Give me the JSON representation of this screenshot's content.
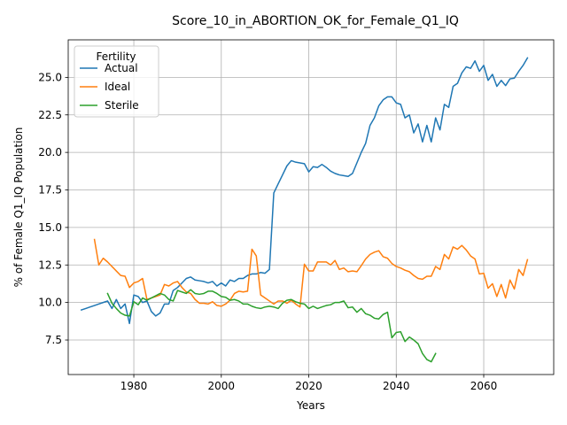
{
  "chart_data": {
    "type": "line",
    "title": "Score_10_in_ABORTION_OK_for_Female_Q1_IQ",
    "xlabel": "Years",
    "ylabel": "% of Female Q1_IQ Population",
    "xlim": [
      1965,
      2076
    ],
    "ylim": [
      5.2,
      27.5
    ],
    "xticks": [
      1980,
      2000,
      2020,
      2040,
      2060
    ],
    "yticks": [
      7.5,
      10.0,
      12.5,
      15.0,
      17.5,
      20.0,
      22.5,
      25.0
    ],
    "grid": true,
    "legend": {
      "title": "Fertility",
      "position": "top-left"
    },
    "series": [
      {
        "name": "Actual",
        "color": "#1f77b4",
        "x": [
          1968,
          1969,
          1970,
          1971,
          1972,
          1973,
          1974,
          1975,
          1976,
          1977,
          1978,
          1979,
          1980,
          1981,
          1982,
          1983,
          1984,
          1985,
          1986,
          1987,
          1988,
          1989,
          1990,
          1991,
          1992,
          1993,
          1994,
          1995,
          1996,
          1997,
          1998,
          1999,
          2000,
          2001,
          2002,
          2003,
          2004,
          2005,
          2006,
          2007,
          2008,
          2009,
          2010,
          2011,
          2012,
          2013,
          2014,
          2015,
          2016,
          2017,
          2018,
          2019,
          2020,
          2021,
          2022,
          2023,
          2024,
          2025,
          2026,
          2027,
          2028,
          2029,
          2030,
          2031,
          2032,
          2033,
          2034,
          2035,
          2036,
          2037,
          2038,
          2039,
          2040,
          2041,
          2042,
          2043,
          2044,
          2045,
          2046,
          2047,
          2048,
          2049,
          2050,
          2051,
          2052,
          2053,
          2054,
          2055,
          2056,
          2057,
          2058,
          2059,
          2060,
          2061,
          2062,
          2063,
          2064,
          2065,
          2066,
          2067,
          2068,
          2069,
          2070
        ],
        "values": [
          9.5,
          9.6,
          9.7,
          9.8,
          9.9,
          10.0,
          10.1,
          9.6,
          10.2,
          9.6,
          9.9,
          8.6,
          10.5,
          10.4,
          10.0,
          10.1,
          9.4,
          9.1,
          9.3,
          9.9,
          9.9,
          10.8,
          11.0,
          11.3,
          11.6,
          11.7,
          11.5,
          11.45,
          11.4,
          11.3,
          11.4,
          11.1,
          11.3,
          11.1,
          11.5,
          11.4,
          11.6,
          11.6,
          11.8,
          11.9,
          11.9,
          12.0,
          11.95,
          12.2,
          17.3,
          17.9,
          18.5,
          19.1,
          19.45,
          19.35,
          19.3,
          19.25,
          18.7,
          19.05,
          19.0,
          19.2,
          19.0,
          18.75,
          18.6,
          18.5,
          18.45,
          18.4,
          18.6,
          19.3,
          20.0,
          20.6,
          21.8,
          22.3,
          23.1,
          23.5,
          23.7,
          23.7,
          23.3,
          23.2,
          22.3,
          22.5,
          21.3,
          21.9,
          20.7,
          21.8,
          20.7,
          22.3,
          21.5,
          23.2,
          23.0,
          24.4,
          24.6,
          25.3,
          25.7,
          25.6,
          26.1,
          25.4,
          25.8,
          24.8,
          25.2,
          24.4,
          24.8,
          24.45,
          24.9,
          24.95,
          25.4,
          25.8,
          26.3
        ]
      },
      {
        "name": "Ideal",
        "color": "#ff7f0e",
        "x": [
          1971,
          1972,
          1973,
          1974,
          1975,
          1976,
          1977,
          1978,
          1979,
          1980,
          1981,
          1982,
          1983,
          1984,
          1985,
          1986,
          1987,
          1988,
          1989,
          1990,
          1991,
          1992,
          1993,
          1994,
          1995,
          1996,
          1997,
          1998,
          1999,
          2000,
          2001,
          2002,
          2003,
          2004,
          2005,
          2006,
          2007,
          2008,
          2009,
          2010,
          2011,
          2012,
          2013,
          2014,
          2015,
          2016,
          2017,
          2018,
          2019,
          2020,
          2021,
          2022,
          2023,
          2024,
          2025,
          2026,
          2027,
          2028,
          2029,
          2030,
          2031,
          2032,
          2033,
          2034,
          2035,
          2036,
          2037,
          2038,
          2039,
          2040,
          2041,
          2042,
          2043,
          2044,
          2045,
          2046,
          2047,
          2048,
          2049,
          2050,
          2051,
          2052,
          2053,
          2054,
          2055,
          2056,
          2057,
          2058,
          2059,
          2060,
          2061,
          2062,
          2063,
          2064,
          2065,
          2066,
          2067,
          2068,
          2069,
          2070
        ],
        "values": [
          14.2,
          12.5,
          12.95,
          12.7,
          12.4,
          12.1,
          11.8,
          11.75,
          11.0,
          11.3,
          11.4,
          11.6,
          10.2,
          10.3,
          10.4,
          10.5,
          11.2,
          11.1,
          11.3,
          11.4,
          11.0,
          10.7,
          10.6,
          10.2,
          9.95,
          9.95,
          9.9,
          10.05,
          9.8,
          9.75,
          9.9,
          10.15,
          10.6,
          10.75,
          10.7,
          10.75,
          13.55,
          13.1,
          10.5,
          10.3,
          10.1,
          9.9,
          10.1,
          10.1,
          9.95,
          10.15,
          9.9,
          9.7,
          12.55,
          12.1,
          12.1,
          12.7,
          12.7,
          12.7,
          12.5,
          12.8,
          12.2,
          12.3,
          12.05,
          12.1,
          12.05,
          12.45,
          12.9,
          13.2,
          13.35,
          13.45,
          13.05,
          12.95,
          12.6,
          12.4,
          12.3,
          12.15,
          12.05,
          11.8,
          11.6,
          11.55,
          11.75,
          11.75,
          12.4,
          12.2,
          13.2,
          12.9,
          13.7,
          13.55,
          13.8,
          13.5,
          13.1,
          12.9,
          11.9,
          11.95,
          10.95,
          11.25,
          10.4,
          11.2,
          10.3,
          11.5,
          10.9,
          12.2,
          11.8,
          12.85
        ]
      },
      {
        "name": "Sterile",
        "color": "#2ca02c",
        "x": [
          1974,
          1975,
          1976,
          1977,
          1978,
          1979,
          1980,
          1981,
          1982,
          1983,
          1984,
          1985,
          1986,
          1987,
          1988,
          1989,
          1990,
          1991,
          1992,
          1993,
          1994,
          1995,
          1996,
          1997,
          1998,
          1999,
          2000,
          2001,
          2002,
          2003,
          2004,
          2005,
          2006,
          2007,
          2008,
          2009,
          2010,
          2011,
          2012,
          2013,
          2014,
          2015,
          2016,
          2017,
          2018,
          2019,
          2020,
          2021,
          2022,
          2023,
          2024,
          2025,
          2026,
          2027,
          2028,
          2029,
          2030,
          2031,
          2032,
          2033,
          2034,
          2035,
          2036,
          2037,
          2038,
          2039,
          2040,
          2041,
          2042,
          2043,
          2044,
          2045,
          2046,
          2047,
          2048,
          2049
        ],
        "values": [
          10.6,
          9.95,
          9.6,
          9.3,
          9.15,
          9.1,
          10.05,
          9.85,
          10.3,
          10.15,
          10.3,
          10.45,
          10.6,
          10.5,
          10.2,
          10.1,
          10.8,
          10.7,
          10.6,
          10.85,
          10.6,
          10.55,
          10.6,
          10.75,
          10.75,
          10.6,
          10.4,
          10.35,
          10.15,
          10.2,
          10.1,
          9.9,
          9.9,
          9.75,
          9.65,
          9.6,
          9.7,
          9.75,
          9.7,
          9.6,
          9.95,
          10.15,
          10.2,
          10.05,
          9.95,
          9.9,
          9.6,
          9.75,
          9.6,
          9.7,
          9.8,
          9.85,
          10.0,
          10.0,
          10.1,
          9.65,
          9.7,
          9.35,
          9.6,
          9.25,
          9.15,
          8.95,
          8.9,
          9.2,
          9.35,
          7.65,
          8.0,
          8.05,
          7.4,
          7.7,
          7.5,
          7.25,
          6.6,
          6.2,
          6.05,
          6.6
        ]
      }
    ]
  }
}
